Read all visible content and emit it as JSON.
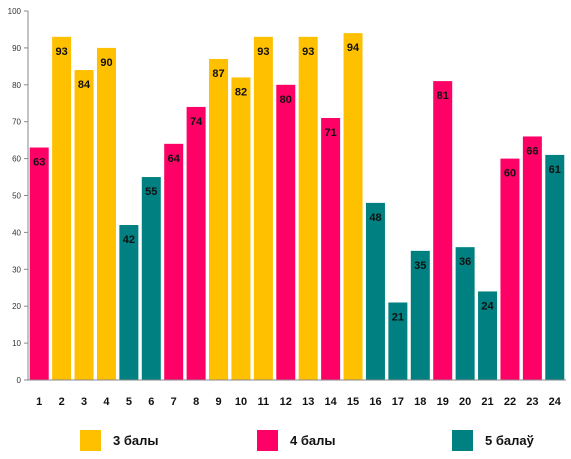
{
  "chart_data": {
    "type": "bar",
    "categories": [
      "1",
      "2",
      "3",
      "4",
      "5",
      "6",
      "7",
      "8",
      "9",
      "10",
      "11",
      "12",
      "13",
      "14",
      "15",
      "16",
      "17",
      "18",
      "19",
      "20",
      "21",
      "22",
      "23",
      "24"
    ],
    "values": [
      63,
      93,
      84,
      90,
      42,
      55,
      64,
      74,
      87,
      82,
      93,
      80,
      93,
      71,
      94,
      48,
      21,
      35,
      81,
      36,
      24,
      60,
      66,
      61
    ],
    "groups": [
      1,
      0,
      0,
      0,
      2,
      2,
      1,
      1,
      0,
      0,
      0,
      1,
      0,
      1,
      0,
      2,
      2,
      2,
      1,
      2,
      2,
      1,
      1,
      2
    ],
    "series": [
      {
        "name": "3 балы",
        "color": "#FFC000"
      },
      {
        "name": "4 балы",
        "color": "#FF0066"
      },
      {
        "name": "5 балаў",
        "color": "#008080"
      }
    ],
    "ylim": [
      0,
      100
    ],
    "yticks": [
      0,
      10,
      20,
      30,
      40,
      50,
      60,
      70,
      80,
      90,
      100
    ],
    "grid": false,
    "legend_position": "bottom"
  }
}
